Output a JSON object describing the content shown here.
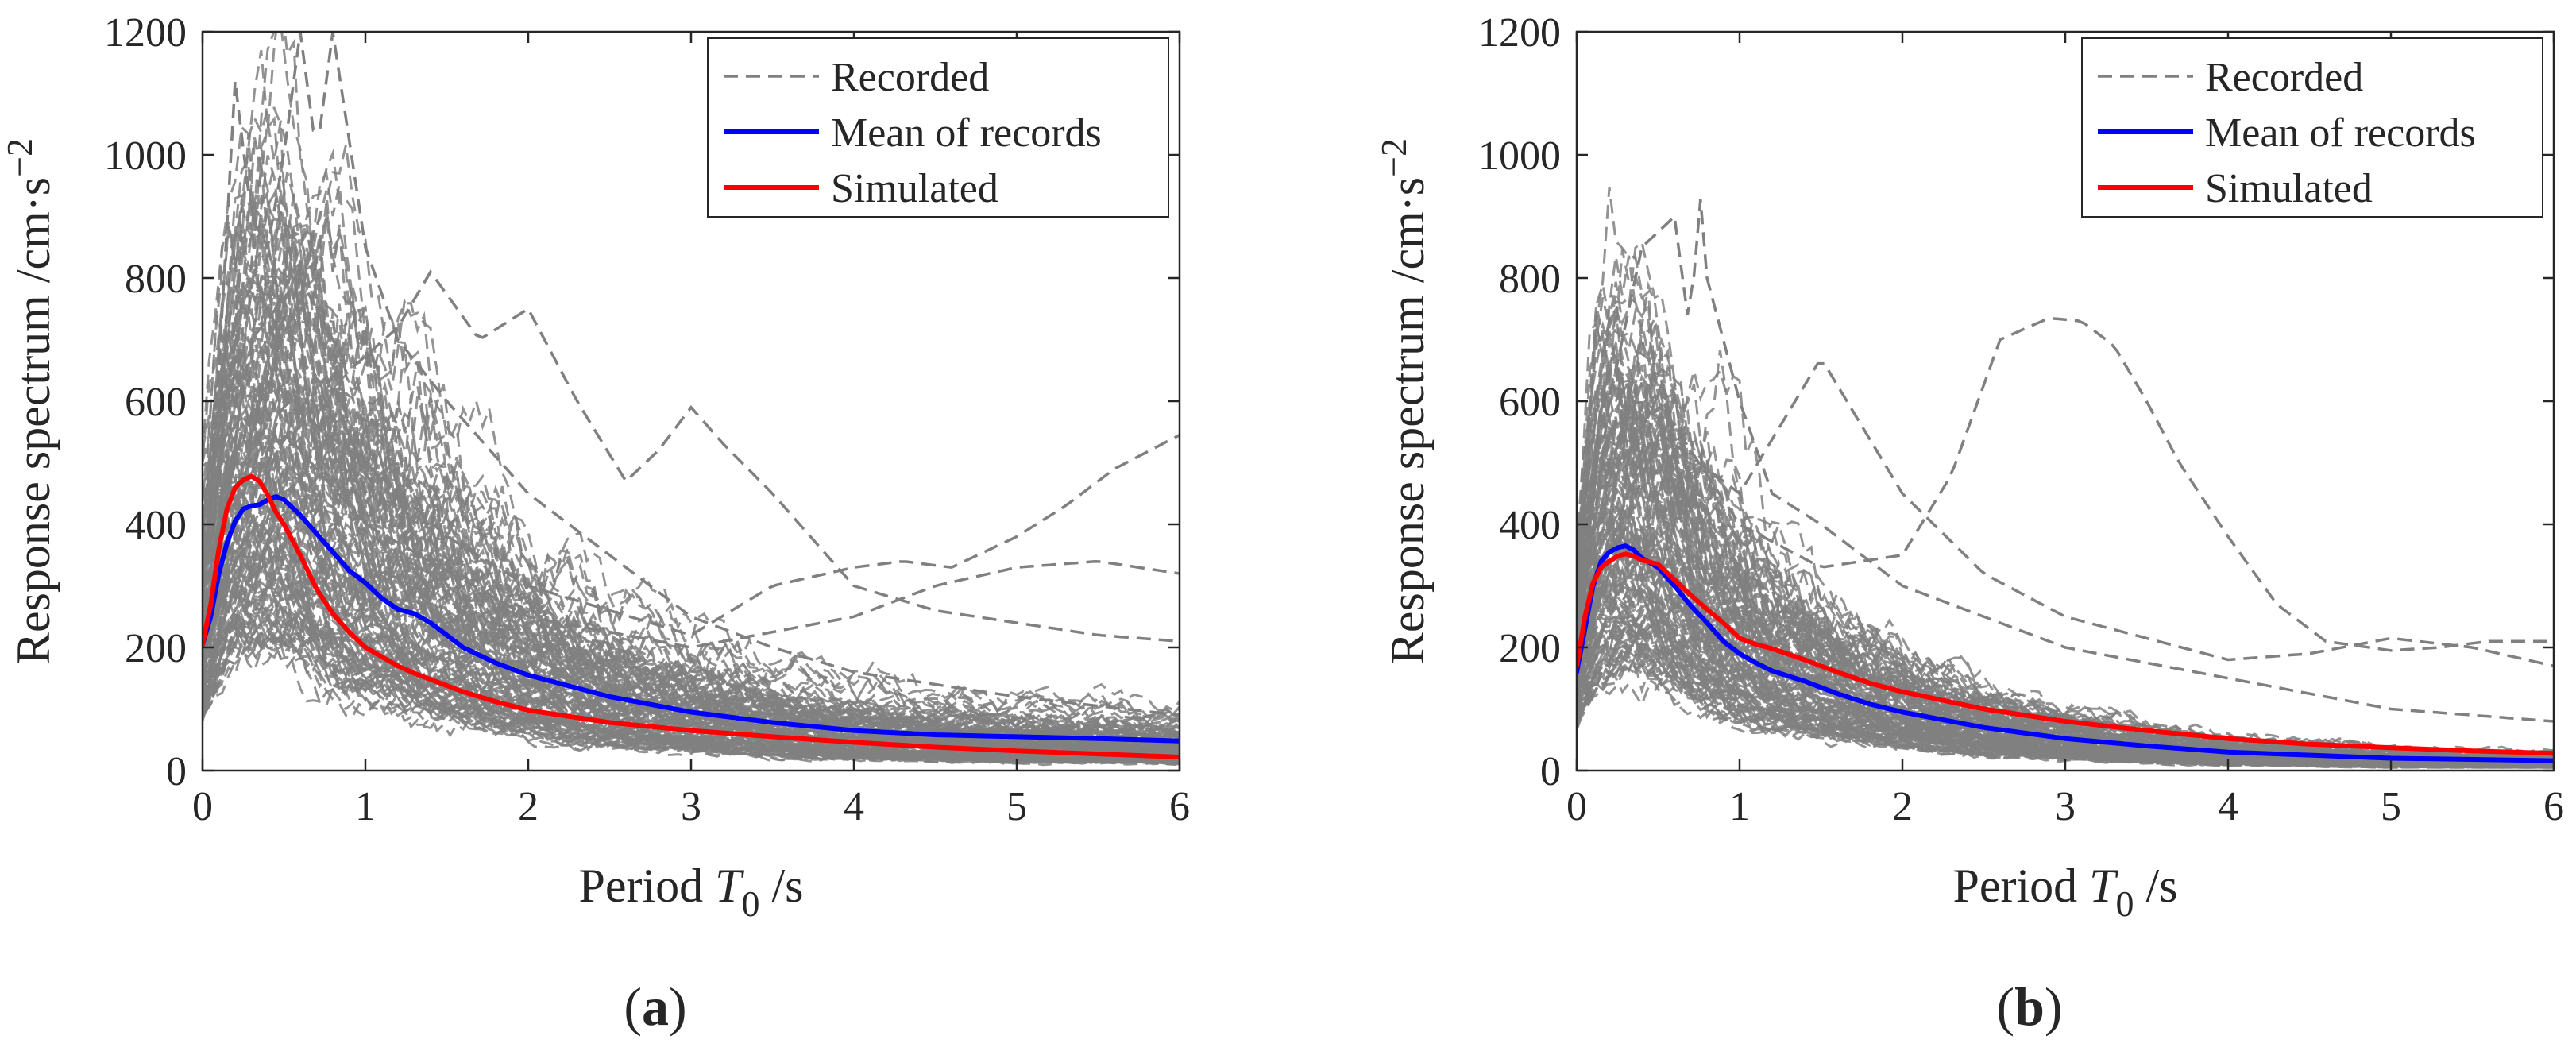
{
  "colors": {
    "recorded": "#808080",
    "mean": "#0000ff",
    "simulated": "#ff0000",
    "axis": "#262626"
  },
  "chart_data": [
    {
      "type": "line",
      "panel_label": "(a)",
      "panel_letter": "a",
      "xlabel": "Period T0 /s",
      "xlabel_parts": {
        "prefix": "Period ",
        "symbol": "T",
        "subscript": "0",
        "suffix": " /s"
      },
      "ylabel": "Response spectrum /cm·s−2",
      "ylabel_parts": {
        "base": "Response spectrum /cm·s",
        "superscript": "−2"
      },
      "xlim": [
        0,
        6
      ],
      "ylim": [
        0,
        1200
      ],
      "xticks": [
        0,
        1,
        2,
        3,
        4,
        5,
        6
      ],
      "yticks": [
        0,
        200,
        400,
        600,
        800,
        1000,
        1200
      ],
      "grid": false,
      "legend_position": "top-right",
      "legend": [
        "Recorded",
        "Mean of records",
        "Simulated"
      ],
      "series": [
        {
          "name": "Mean of records",
          "role": "mean",
          "x": [
            0,
            0.05,
            0.1,
            0.15,
            0.2,
            0.25,
            0.3,
            0.35,
            0.4,
            0.45,
            0.5,
            0.6,
            0.7,
            0.8,
            0.9,
            1.0,
            1.1,
            1.2,
            1.3,
            1.4,
            1.6,
            1.8,
            2.0,
            2.5,
            3.0,
            3.5,
            4.0,
            4.5,
            5.0,
            5.5,
            6.0
          ],
          "y": [
            205,
            250,
            320,
            370,
            405,
            425,
            430,
            432,
            440,
            445,
            440,
            415,
            385,
            355,
            325,
            305,
            280,
            262,
            255,
            240,
            200,
            175,
            155,
            120,
            95,
            78,
            65,
            58,
            55,
            52,
            48
          ]
        },
        {
          "name": "Simulated",
          "role": "simulated",
          "x": [
            0,
            0.05,
            0.1,
            0.15,
            0.2,
            0.25,
            0.3,
            0.35,
            0.4,
            0.45,
            0.5,
            0.6,
            0.7,
            0.8,
            0.9,
            1.0,
            1.1,
            1.2,
            1.3,
            1.4,
            1.6,
            1.8,
            2.0,
            2.5,
            3.0,
            3.5,
            4.0,
            4.5,
            5.0,
            5.5,
            6.0
          ],
          "y": [
            205,
            270,
            360,
            425,
            460,
            472,
            478,
            470,
            448,
            420,
            400,
            350,
            295,
            255,
            225,
            200,
            185,
            170,
            158,
            148,
            128,
            112,
            98,
            78,
            65,
            55,
            46,
            38,
            32,
            27,
            22
          ]
        }
      ],
      "recorded_features": [
        {
          "x": [
            0,
            0.1,
            0.2,
            0.3,
            0.4,
            0.5,
            0.6,
            0.7,
            0.8,
            1.0,
            1.2,
            1.5,
            2.0,
            2.5,
            3.0,
            3.5,
            4.0,
            5.0,
            6.0
          ],
          "y": [
            230,
            650,
            1120,
            900,
            850,
            1000,
            1200,
            1000,
            1200,
            850,
            700,
            600,
            450,
            350,
            250,
            200,
            160,
            120,
            90
          ]
        },
        {
          "x": [
            0,
            0.3,
            0.6,
            0.9,
            1.2,
            1.4,
            1.7,
            2.0,
            2.3,
            2.6,
            2.8,
            3.0,
            3.2,
            3.5,
            4.0,
            4.5,
            5.0,
            5.5,
            6.0
          ],
          "y": [
            210,
            700,
            800,
            650,
            720,
            810,
            700,
            750,
            600,
            470,
            520,
            590,
            530,
            450,
            300,
            260,
            240,
            220,
            210
          ]
        },
        {
          "x": [
            0,
            0.5,
            1.0,
            1.5,
            2.0,
            2.5,
            3.0,
            3.5,
            4.0,
            4.3,
            4.6,
            5.0,
            5.3,
            5.6,
            6.0
          ],
          "y": [
            200,
            600,
            500,
            380,
            300,
            260,
            220,
            300,
            330,
            340,
            330,
            380,
            430,
            490,
            545
          ]
        },
        {
          "x": [
            0,
            0.5,
            1.0,
            2.0,
            3.0,
            4.0,
            4.5,
            5.0,
            5.5,
            6.0
          ],
          "y": [
            190,
            550,
            400,
            250,
            200,
            250,
            300,
            330,
            340,
            320
          ]
        }
      ]
    },
    {
      "type": "line",
      "panel_label": "(b)",
      "panel_letter": "b",
      "xlabel": "Period T0 /s",
      "xlabel_parts": {
        "prefix": "Period ",
        "symbol": "T",
        "subscript": "0",
        "suffix": " /s"
      },
      "ylabel": "Response spectrum /cm·s−2",
      "ylabel_parts": {
        "base": "Response spectrum /cm·s",
        "superscript": "−2"
      },
      "xlim": [
        0,
        6
      ],
      "ylim": [
        0,
        1200
      ],
      "xticks": [
        0,
        1,
        2,
        3,
        4,
        5,
        6
      ],
      "yticks": [
        0,
        200,
        400,
        600,
        800,
        1000,
        1200
      ],
      "grid": false,
      "legend_position": "top-right",
      "legend": [
        "Recorded",
        "Mean of records",
        "Simulated"
      ],
      "series": [
        {
          "name": "Mean of records",
          "role": "mean",
          "x": [
            0,
            0.05,
            0.1,
            0.15,
            0.2,
            0.25,
            0.3,
            0.35,
            0.4,
            0.5,
            0.6,
            0.7,
            0.8,
            0.9,
            1.0,
            1.1,
            1.2,
            1.4,
            1.6,
            1.8,
            2.0,
            2.5,
            3.0,
            3.5,
            4.0,
            4.5,
            5.0,
            5.5,
            6.0
          ],
          "y": [
            160,
            230,
            300,
            340,
            355,
            362,
            365,
            358,
            345,
            330,
            300,
            268,
            240,
            210,
            190,
            175,
            162,
            145,
            125,
            108,
            95,
            70,
            52,
            40,
            30,
            25,
            20,
            18,
            16
          ]
        },
        {
          "name": "Simulated",
          "role": "simulated",
          "x": [
            0,
            0.05,
            0.1,
            0.15,
            0.2,
            0.25,
            0.3,
            0.35,
            0.4,
            0.5,
            0.6,
            0.7,
            0.8,
            0.9,
            1.0,
            1.1,
            1.2,
            1.4,
            1.6,
            1.8,
            2.0,
            2.5,
            3.0,
            3.5,
            4.0,
            4.5,
            5.0,
            5.5,
            6.0
          ],
          "y": [
            170,
            250,
            305,
            330,
            340,
            348,
            352,
            348,
            342,
            335,
            310,
            285,
            262,
            240,
            215,
            205,
            198,
            180,
            160,
            142,
            128,
            100,
            80,
            65,
            52,
            43,
            37,
            32,
            28
          ]
        }
      ],
      "recorded_features": [
        {
          "x": [
            0,
            0.2,
            0.4,
            0.6,
            0.7,
            0.75,
            0.8,
            0.9,
            1.0,
            1.2,
            1.5,
            2.0,
            2.5,
            3.0,
            4.0,
            5.0,
            6.0
          ],
          "y": [
            180,
            600,
            850,
            900,
            700,
            960,
            800,
            700,
            600,
            450,
            400,
            300,
            250,
            200,
            150,
            100,
            80
          ]
        },
        {
          "x": [
            0,
            0.5,
            1.0,
            1.5,
            2.0,
            2.3,
            2.6,
            2.9,
            3.1,
            3.3,
            3.5,
            3.7,
            4.0,
            4.3,
            4.6,
            5.0,
            5.3,
            5.6,
            6.0
          ],
          "y": [
            200,
            600,
            400,
            330,
            350,
            480,
            700,
            735,
            730,
            690,
            600,
            500,
            380,
            270,
            210,
            195,
            200,
            210,
            210
          ]
        },
        {
          "x": [
            0,
            0.5,
            1.0,
            1.5,
            2.0,
            2.5,
            3.0,
            4.0,
            4.5,
            5.0,
            5.5,
            6.0
          ],
          "y": [
            170,
            550,
            450,
            670,
            450,
            320,
            250,
            180,
            190,
            215,
            200,
            170
          ]
        }
      ]
    }
  ]
}
